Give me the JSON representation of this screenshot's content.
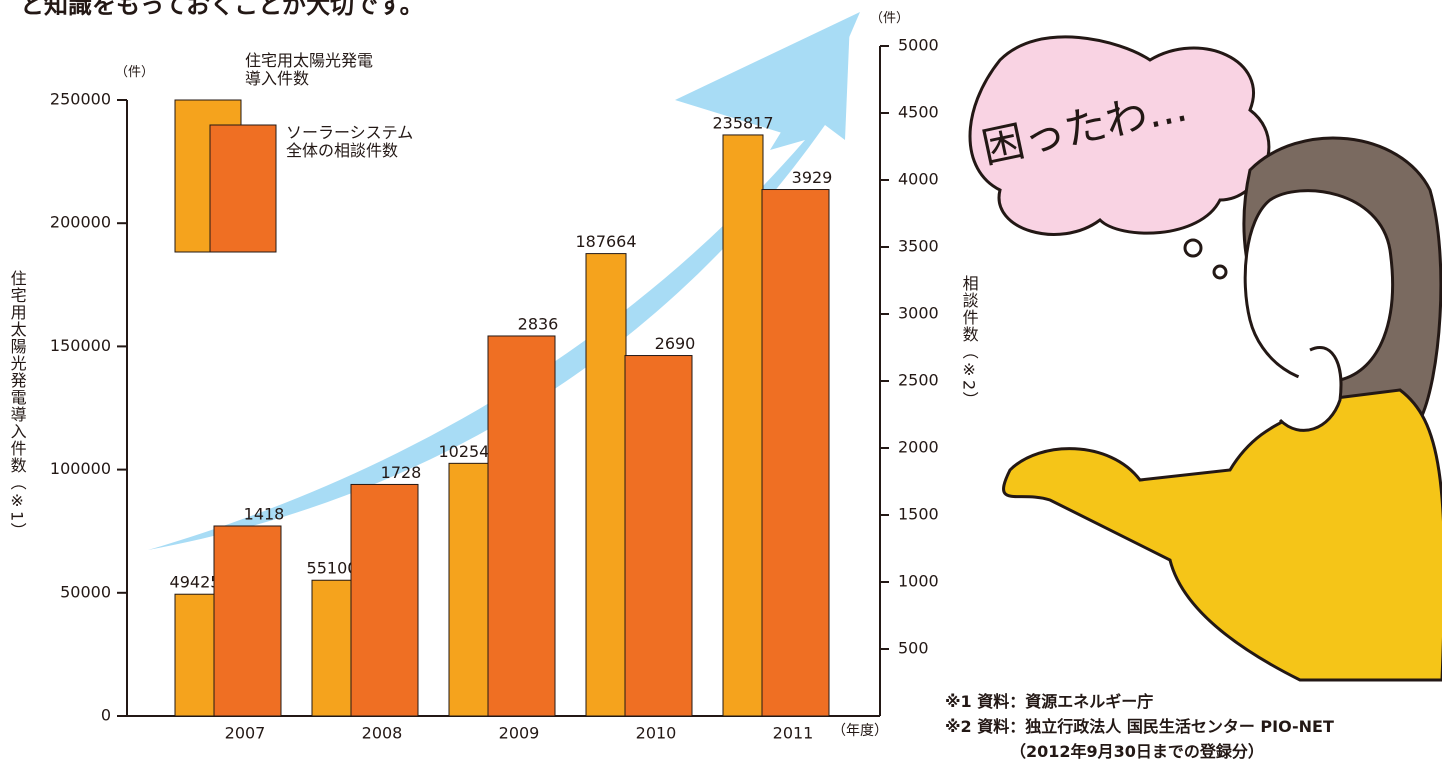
{
  "header": {
    "caption": "と知識をもっておくことが大切です。"
  },
  "chart_data": {
    "type": "bar",
    "categories": [
      "2007",
      "2008",
      "2009",
      "2010",
      "2011"
    ],
    "series": [
      {
        "name": "住宅用太陽光発電導入件数",
        "color": "#f5a31d",
        "values": [
          49425,
          55100,
          102544,
          187664,
          235817
        ]
      },
      {
        "name": "ソーラーシステム全体の相談件数",
        "color": "#ef6f23",
        "values": [
          1418,
          1728,
          2836,
          2690,
          3929
        ],
        "axis": "y2"
      }
    ],
    "ylim": [
      0,
      250000
    ],
    "yticks": [
      0,
      50000,
      100000,
      150000,
      200000,
      250000
    ],
    "y2lim": [
      0,
      5000
    ],
    "y2ticks": [
      500,
      1000,
      1500,
      2000,
      2500,
      3000,
      3500,
      4000,
      4500,
      5000
    ],
    "y_label": "住宅用太陽光発電導入件数（※1）",
    "y2_label": "相談件数（※2）",
    "y_unit": "（件）",
    "y2_unit": "（件）",
    "x_unit": "（年度）"
  },
  "notes": [
    "※1 資料：資源エネルギー庁",
    "※2 資料：独立行政法人 国民生活センター PIO-NET",
    "（2012年9月30日までの登録分）"
  ],
  "illustration": {
    "speech": "困ったわ..."
  }
}
